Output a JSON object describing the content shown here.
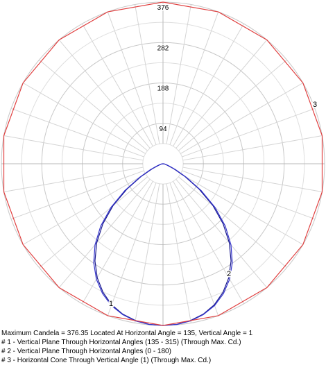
{
  "chart_data": {
    "type": "polar",
    "grid": true,
    "rlim": [
      0,
      376
    ],
    "radial_ticks": [
      94,
      188,
      282,
      376
    ],
    "angular_grid_step_deg": 10,
    "curve_labels": [
      "1",
      "2",
      "3"
    ],
    "series": [
      {
        "key": "plane-135-315",
        "label": "1",
        "color": "#1a1a8c",
        "note_angle_convention": "0 = nadir (down), positive = toward right",
        "angles": [
          -90,
          -85,
          -80,
          -75,
          -70,
          -65,
          -60,
          -55,
          -50,
          -45,
          -40,
          -35,
          -30,
          -25,
          -20,
          -15,
          -10,
          -5,
          0,
          5,
          10,
          15,
          20,
          25,
          30,
          35,
          40,
          45,
          50,
          55,
          60,
          65,
          70,
          75,
          80,
          85,
          90
        ],
        "values": [
          0,
          2,
          4,
          6,
          12,
          28,
          58,
          102,
          152,
          198,
          240,
          276,
          306,
          330,
          349,
          362,
          370,
          375,
          376,
          375,
          370,
          362,
          349,
          330,
          306,
          276,
          240,
          198,
          152,
          102,
          58,
          28,
          12,
          6,
          4,
          2,
          0
        ]
      },
      {
        "key": "plane-0-180",
        "label": "2",
        "color": "#3333cc",
        "note_angle_convention": "0 = nadir (down), positive = toward right",
        "angles": [
          -90,
          -85,
          -80,
          -75,
          -70,
          -65,
          -60,
          -55,
          -50,
          -45,
          -40,
          -35,
          -30,
          -25,
          -20,
          -15,
          -10,
          -5,
          0,
          5,
          10,
          15,
          20,
          25,
          30,
          35,
          40,
          45,
          50,
          55,
          60,
          65,
          70,
          75,
          80,
          85,
          90
        ],
        "values": [
          0,
          2,
          5,
          8,
          15,
          32,
          62,
          108,
          158,
          205,
          246,
          281,
          310,
          333,
          351,
          363,
          371,
          375,
          376,
          375,
          371,
          363,
          351,
          333,
          310,
          281,
          246,
          205,
          158,
          108,
          62,
          32,
          15,
          8,
          5,
          2,
          0
        ]
      },
      {
        "key": "horizontal-cone-1",
        "label": "3",
        "color": "#e04040",
        "value_constant": 376,
        "polygon_sides": 18
      }
    ],
    "annotations": {
      "max_candela_line": "Maximum Candela = 376.35   Located At Horizontal Angle = 135, Vertical Angle = 1",
      "legend": [
        "# 1 - Vertical Plane Through Horizontal Angles (135 - 315) (Through Max. Cd.)",
        "# 2 - Vertical Plane Through Horizontal Angles (0 - 180)",
        "# 3 - Horizontal Cone Through Vertical Angle (1) (Through Max. Cd.)"
      ]
    }
  }
}
